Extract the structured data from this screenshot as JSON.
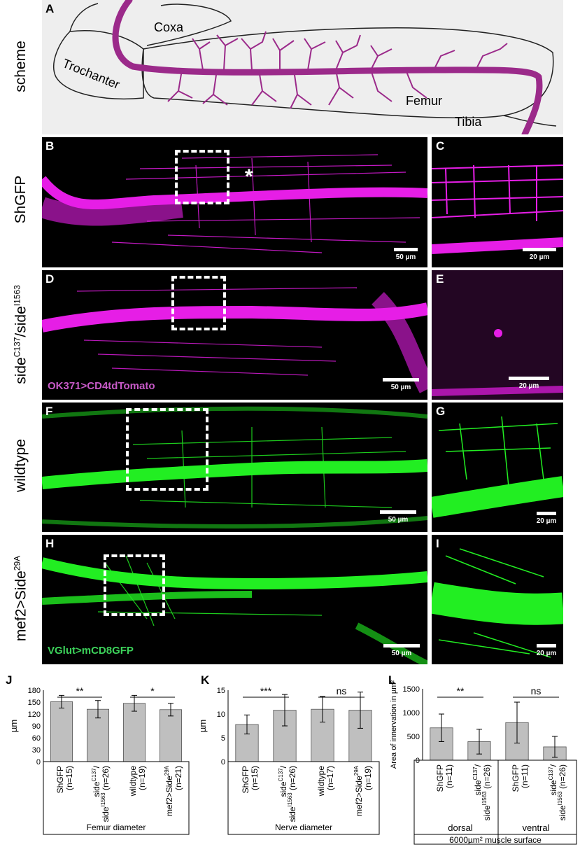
{
  "figure": {
    "row_labels": {
      "scheme": "scheme",
      "shgfp": "ShGFP",
      "side_mut": "side",
      "side_mut_sup1": "C137",
      "side_mut_mid": "/side",
      "side_mut_sup2": "I1563",
      "wildtype": "wildtype",
      "mef2": "mef2>Side",
      "mef2_sup": "29A"
    },
    "panel_letters": [
      "A",
      "B",
      "C",
      "D",
      "E",
      "F",
      "G",
      "H",
      "I",
      "J",
      "K",
      "L"
    ],
    "scheme_labels": {
      "coxa": "Coxa",
      "trochanter": "Trochanter",
      "femur": "Femur",
      "tibia": "Tibia"
    },
    "scale_bars": {
      "fifty": "50 µm",
      "twenty": "20 µm"
    },
    "reporters": {
      "magenta": "OK371>CD4tdTomato",
      "green": "VGlut>mCD8GFP"
    },
    "asterisk": "*",
    "colors": {
      "magenta": "#e61ee6",
      "green": "#22ee22",
      "bar": "#bfbfbf",
      "scheme_bg": "#eeeeee",
      "nerve": "#9b2a8a"
    }
  },
  "charts": {
    "J": {
      "ylabel": "µm",
      "yticks": [
        "180",
        "150",
        "120",
        "90",
        "60",
        "30",
        "0"
      ],
      "categories": [
        {
          "l1": "ShGFP",
          "l2": "(n=15)"
        },
        {
          "l1": "side",
          "sup1": "C137",
          "l1b": "/",
          "l2": "side",
          "sup2": "I1563",
          "l2b": " (n=26)"
        },
        {
          "l1": "wildtype",
          "l2": "(n=19)"
        },
        {
          "l1": "mef2>Side",
          "sup1": "29A",
          "l2": "(n=21)"
        }
      ],
      "sig": [
        "**",
        "*"
      ],
      "xlabel": "Femur diameter"
    },
    "K": {
      "ylabel": "µm",
      "yticks": [
        "15",
        "10",
        "5",
        "0"
      ],
      "categories": [
        {
          "l1": "ShGFP",
          "l2": "(n=15)"
        },
        {
          "l1": "side",
          "sup1": "C137",
          "l1b": "/",
          "l2": "side",
          "sup2": "I1563",
          "l2b": " (n=26)"
        },
        {
          "l1": "wildtype",
          "l2": "(n=17)"
        },
        {
          "l1": "mef2>Side",
          "sup1": "29A",
          "l2": "(n=19)"
        }
      ],
      "sig": [
        "***",
        "ns"
      ],
      "xlabel": "Nerve diameter"
    },
    "L": {
      "ylabel": "Area of innervation in µm²",
      "yticks": [
        "1500",
        "1000",
        "500",
        "0"
      ],
      "categories": [
        {
          "l1": "ShGFP",
          "l2": "(n=11)"
        },
        {
          "l1": "side",
          "sup1": "C137",
          "l1b": "/",
          "l2": "side",
          "sup2": "I1563",
          "l2b": " (n=26)"
        },
        {
          "l1": "ShGFP",
          "l2": "(n=11)"
        },
        {
          "l1": "side",
          "sup1": "C137",
          "l1b": "/",
          "l2": "side",
          "sup2": "I1563",
          "l2b": " (n=26)"
        }
      ],
      "sig": [
        "**",
        "ns"
      ],
      "groups": [
        "dorsal",
        "ventral"
      ],
      "xlabel": "6000µm² muscle surface"
    }
  },
  "chart_data": [
    {
      "type": "bar",
      "panel": "J",
      "categories": [
        "ShGFP (n=15)",
        "sideC137/sideI1563 (n=26)",
        "wildtype (n=19)",
        "mef2>Side29A (n=21)"
      ],
      "values": [
        151,
        132,
        147,
        131
      ],
      "errors": [
        16,
        22,
        20,
        16
      ],
      "ylabel": "µm",
      "xlabel": "Femur diameter",
      "ylim": [
        0,
        180
      ]
    },
    {
      "type": "bar",
      "panel": "K",
      "categories": [
        "ShGFP (n=15)",
        "sideC137/sideI1563 (n=26)",
        "wildtype (n=17)",
        "mef2>Side29A (n=19)"
      ],
      "values": [
        7.8,
        10.8,
        11.0,
        10.8
      ],
      "errors": [
        2.0,
        3.3,
        2.7,
        3.8
      ],
      "ylabel": "µm",
      "xlabel": "Nerve diameter",
      "ylim": [
        0,
        15
      ]
    },
    {
      "type": "bar",
      "panel": "L",
      "categories": [
        "ShGFP (n=11)",
        "sideC137/sideI1563 (n=26)",
        "ShGFP (n=11)",
        "sideC137/sideI1563 (n=26)"
      ],
      "values": [
        680,
        390,
        790,
        280
      ],
      "errors": [
        290,
        260,
        430,
        220
      ],
      "ylabel": "Area of innervation in µm²",
      "xlabel": "6000µm² muscle surface",
      "ylim": [
        0,
        1500
      ]
    }
  ]
}
